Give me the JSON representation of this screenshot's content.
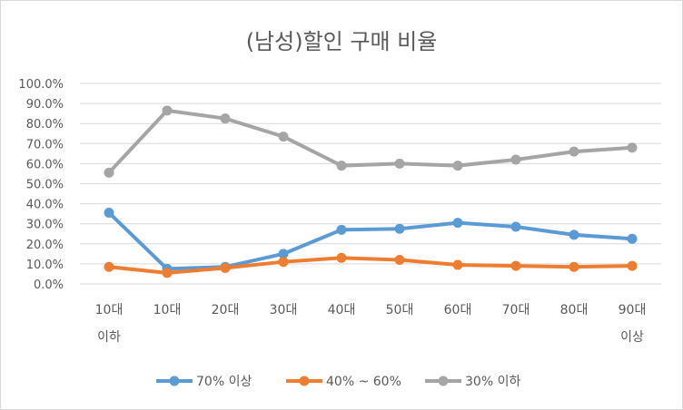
{
  "chart_data": {
    "type": "line",
    "title": "(남성)할인 구매 비율",
    "categories": [
      [
        "10대",
        "이하"
      ],
      [
        "10대"
      ],
      [
        "20대"
      ],
      [
        "30대"
      ],
      [
        "40대"
      ],
      [
        "50대"
      ],
      [
        "60대"
      ],
      [
        "70대"
      ],
      [
        "80대"
      ],
      [
        "90대",
        "이상"
      ]
    ],
    "y_ticks": [
      "0.0%",
      "10.0%",
      "20.0%",
      "30.0%",
      "40.0%",
      "50.0%",
      "60.0%",
      "70.0%",
      "80.0%",
      "90.0%",
      "100.0%"
    ],
    "ylim": [
      0,
      100
    ],
    "grid": true,
    "legend_position": "bottom",
    "series": [
      {
        "name": "70% 이상",
        "color": "#5b9bd5",
        "values": [
          35.5,
          7.5,
          8.5,
          15.0,
          27.0,
          27.5,
          30.5,
          28.5,
          24.5,
          22.5
        ]
      },
      {
        "name": "40% ~ 60%",
        "color": "#ed7d31",
        "values": [
          8.5,
          5.5,
          8.0,
          11.0,
          13.0,
          12.0,
          9.5,
          9.0,
          8.5,
          9.0
        ]
      },
      {
        "name": "30% 이하",
        "color": "#a5a5a5",
        "values": [
          55.5,
          86.5,
          82.5,
          73.5,
          59.0,
          60.0,
          59.0,
          62.0,
          66.0,
          68.0
        ]
      }
    ]
  }
}
